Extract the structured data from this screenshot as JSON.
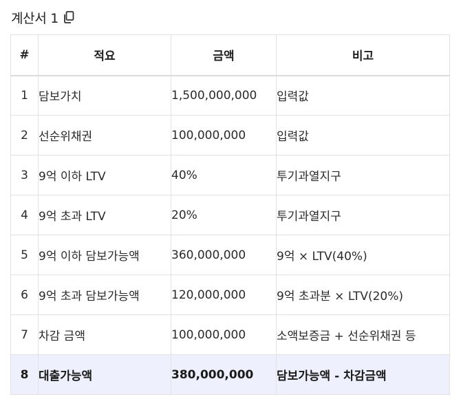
{
  "title": "계산서 1",
  "icons": {
    "copy": "copy-icon"
  },
  "table": {
    "headers": [
      "#",
      "적요",
      "금액",
      "비고"
    ],
    "rows": [
      {
        "no": "1",
        "desc": "담보가치",
        "amount": "1,500,000,000",
        "note": "입력값"
      },
      {
        "no": "2",
        "desc": "선순위채권",
        "amount": "100,000,000",
        "note": "입력값"
      },
      {
        "no": "3",
        "desc": "9억 이하 LTV",
        "amount": "40%",
        "note": "투기과열지구"
      },
      {
        "no": "4",
        "desc": "9억 초과 LTV",
        "amount": "20%",
        "note": "투기과열지구"
      },
      {
        "no": "5",
        "desc": "9억 이하 담보가능액",
        "amount": "360,000,000",
        "note": "9억 × LTV(40%)"
      },
      {
        "no": "6",
        "desc": "9억 초과 담보가능액",
        "amount": "120,000,000",
        "note": "9억 초과분 × LTV(20%)"
      },
      {
        "no": "7",
        "desc": "차감 금액",
        "amount": "100,000,000",
        "note": "소액보증금 + 선순위채권 등"
      },
      {
        "no": "8",
        "desc": "대출가능액",
        "amount": "380,000,000",
        "note": "담보가능액 - 차감금액"
      }
    ]
  },
  "colors": {
    "total_row_bg": "#eef0fd",
    "border": "#e2e2e2"
  }
}
